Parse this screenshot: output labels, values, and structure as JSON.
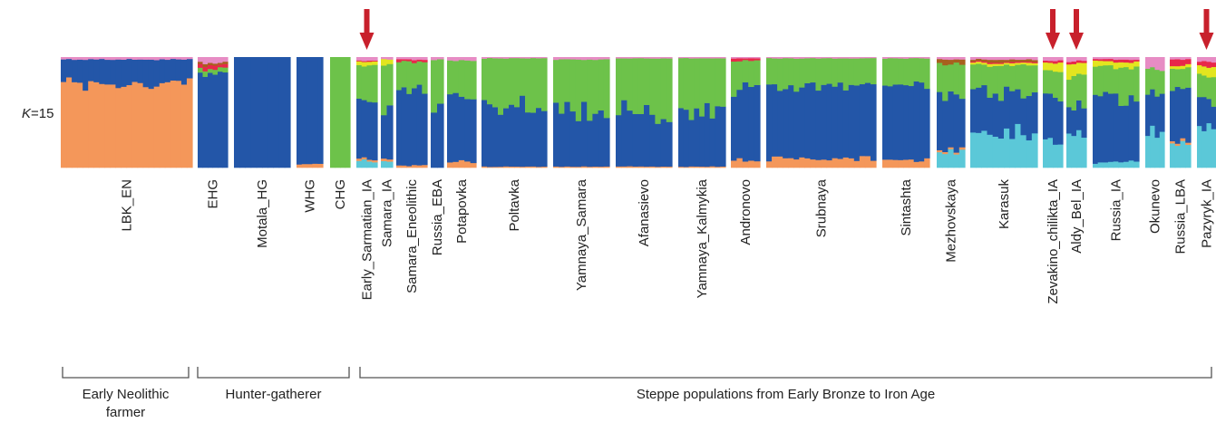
{
  "chart_data": {
    "type": "bar",
    "stacked": true,
    "normalized": true,
    "k_label_prefix": "K",
    "k_label_suffix": "=15",
    "legend": "none",
    "grid": false,
    "colors": {
      "orange": "#f4975a",
      "blue": "#2356a8",
      "green": "#6dc24a",
      "cyan": "#5bc8d8",
      "yellow": "#e3e51f",
      "pink": "#e78cc4",
      "red": "#e8284a",
      "brown": "#a8601e",
      "teal": "#2d8c7a",
      "arrow": "#c8202c",
      "bracket": "#555555"
    },
    "components": [
      "cyan",
      "orange",
      "blue",
      "green",
      "yellow",
      "red",
      "brown",
      "pink"
    ],
    "categories": [
      "LBK_EN",
      "EHG",
      "Motala_HG",
      "WHG",
      "CHG",
      "Early_Sarmatian_IA",
      "Samara_IA",
      "Samara_Eneolithic",
      "Russia_EBA",
      "Potapovka",
      "Poltavka",
      "Yamnaya_Samara",
      "Afanasievo",
      "Yamnaya_Kalmykia",
      "Andronovo",
      "Srubnaya",
      "Sintashta",
      "Mezhovskaya",
      "Karasuk",
      "Zevakino_chilikta_IA",
      "Aldy_Bel_IA",
      "Russia_IA",
      "Okunevo",
      "Russia_LBA",
      "Pazyryk_IA"
    ],
    "populations": [
      {
        "name": "LBK_EN",
        "fractions": {
          "cyan": 0,
          "orange": 0.76,
          "blue": 0.22,
          "green": 0,
          "yellow": 0,
          "red": 0,
          "brown": 0,
          "pink": 0.02
        }
      },
      {
        "name": "EHG",
        "fractions": {
          "cyan": 0,
          "orange": 0,
          "blue": 0.86,
          "green": 0.04,
          "yellow": 0,
          "red": 0.03,
          "brown": 0.02,
          "pink": 0.05
        }
      },
      {
        "name": "Motala_HG",
        "fractions": {
          "cyan": 0,
          "orange": 0,
          "blue": 1.0,
          "green": 0,
          "yellow": 0,
          "red": 0,
          "brown": 0,
          "pink": 0
        }
      },
      {
        "name": "WHG",
        "fractions": {
          "cyan": 0,
          "orange": 0.03,
          "blue": 0.97,
          "green": 0,
          "yellow": 0,
          "red": 0,
          "brown": 0,
          "pink": 0
        }
      },
      {
        "name": "CHG",
        "fractions": {
          "cyan": 0,
          "orange": 0,
          "blue": 0,
          "green": 1.0,
          "yellow": 0,
          "red": 0,
          "brown": 0,
          "pink": 0
        }
      },
      {
        "name": "Early_Sarmatian_IA",
        "fractions": {
          "cyan": 0.06,
          "orange": 0.02,
          "blue": 0.52,
          "green": 0.32,
          "yellow": 0.04,
          "red": 0.01,
          "brown": 0,
          "pink": 0.03
        }
      },
      {
        "name": "Samara_IA",
        "fractions": {
          "cyan": 0.05,
          "orange": 0.02,
          "blue": 0.46,
          "green": 0.4,
          "yellow": 0.05,
          "red": 0,
          "brown": 0,
          "pink": 0.02
        }
      },
      {
        "name": "Samara_Eneolithic",
        "fractions": {
          "cyan": 0,
          "orange": 0.02,
          "blue": 0.68,
          "green": 0.26,
          "yellow": 0,
          "red": 0.02,
          "brown": 0,
          "pink": 0.02
        }
      },
      {
        "name": "Russia_EBA",
        "fractions": {
          "cyan": 0,
          "orange": 0,
          "blue": 0.52,
          "green": 0.46,
          "yellow": 0,
          "red": 0,
          "brown": 0,
          "pink": 0.02
        }
      },
      {
        "name": "Potapovka",
        "fractions": {
          "cyan": 0,
          "orange": 0.05,
          "blue": 0.57,
          "green": 0.35,
          "yellow": 0,
          "red": 0,
          "brown": 0,
          "pink": 0.03
        }
      },
      {
        "name": "Poltavka",
        "fractions": {
          "cyan": 0,
          "orange": 0.01,
          "blue": 0.55,
          "green": 0.43,
          "yellow": 0,
          "red": 0,
          "brown": 0,
          "pink": 0.01
        }
      },
      {
        "name": "Yamnaya_Samara",
        "fractions": {
          "cyan": 0,
          "orange": 0.01,
          "blue": 0.51,
          "green": 0.46,
          "yellow": 0,
          "red": 0,
          "brown": 0,
          "pink": 0.02
        }
      },
      {
        "name": "Afanasievo",
        "fractions": {
          "cyan": 0,
          "orange": 0.01,
          "blue": 0.51,
          "green": 0.47,
          "yellow": 0,
          "red": 0,
          "brown": 0,
          "pink": 0.01
        }
      },
      {
        "name": "Yamnaya_Kalmykia",
        "fractions": {
          "cyan": 0,
          "orange": 0.01,
          "blue": 0.5,
          "green": 0.48,
          "yellow": 0,
          "red": 0,
          "brown": 0,
          "pink": 0.01
        }
      },
      {
        "name": "Andronovo",
        "fractions": {
          "cyan": 0,
          "orange": 0.06,
          "blue": 0.66,
          "green": 0.25,
          "yellow": 0,
          "red": 0.02,
          "brown": 0,
          "pink": 0.01
        }
      },
      {
        "name": "Srubnaya",
        "fractions": {
          "cyan": 0,
          "orange": 0.08,
          "blue": 0.65,
          "green": 0.26,
          "yellow": 0,
          "red": 0,
          "brown": 0,
          "pink": 0.01
        }
      },
      {
        "name": "Sintashta",
        "fractions": {
          "cyan": 0,
          "orange": 0.07,
          "blue": 0.67,
          "green": 0.25,
          "yellow": 0,
          "red": 0,
          "brown": 0,
          "pink": 0.01
        }
      },
      {
        "name": "Mezhovskaya",
        "fractions": {
          "cyan": 0.14,
          "orange": 0.02,
          "blue": 0.48,
          "green": 0.3,
          "yellow": 0,
          "red": 0,
          "brown": 0.04,
          "pink": 0.02
        }
      },
      {
        "name": "Karasuk",
        "fractions": {
          "cyan": 0.3,
          "orange": 0,
          "blue": 0.38,
          "green": 0.25,
          "yellow": 0.02,
          "red": 0.01,
          "brown": 0.02,
          "pink": 0.02
        }
      },
      {
        "name": "Zevakino_chilikta_IA",
        "fractions": {
          "cyan": 0.22,
          "orange": 0,
          "blue": 0.42,
          "green": 0.24,
          "yellow": 0.07,
          "red": 0.02,
          "brown": 0,
          "pink": 0.03
        }
      },
      {
        "name": "Aldy_Bel_IA",
        "fractions": {
          "cyan": 0.34,
          "orange": 0,
          "blue": 0.25,
          "green": 0.26,
          "yellow": 0.1,
          "red": 0.02,
          "brown": 0,
          "pink": 0.03
        }
      },
      {
        "name": "Russia_IA",
        "fractions": {
          "cyan": 0.05,
          "orange": 0,
          "blue": 0.58,
          "green": 0.28,
          "yellow": 0.05,
          "red": 0.02,
          "brown": 0,
          "pink": 0.02
        }
      },
      {
        "name": "Okunevo",
        "fractions": {
          "cyan": 0.32,
          "orange": 0,
          "blue": 0.38,
          "green": 0.2,
          "yellow": 0,
          "red": 0,
          "brown": 0,
          "pink": 0.1
        }
      },
      {
        "name": "Russia_LBA",
        "fractions": {
          "cyan": 0.22,
          "orange": 0.02,
          "blue": 0.45,
          "green": 0.2,
          "yellow": 0.03,
          "red": 0.06,
          "brown": 0,
          "pink": 0.02
        }
      },
      {
        "name": "Pazyryk_IA",
        "fractions": {
          "cyan": 0.35,
          "orange": 0,
          "blue": 0.25,
          "green": 0.22,
          "yellow": 0.1,
          "red": 0.04,
          "brown": 0,
          "pink": 0.04
        }
      }
    ],
    "highlighted": [
      "Early_Sarmatian_IA",
      "Zevakino_chilikta_IA",
      "Aldy_Bel_IA",
      "Pazyryk_IA"
    ],
    "groups": [
      {
        "label_lines": [
          "Early Neolithic",
          "farmer"
        ],
        "populations": [
          "LBK_EN"
        ]
      },
      {
        "label_lines": [
          "Hunter-gatherer"
        ],
        "populations": [
          "EHG",
          "Motala_HG",
          "WHG",
          "CHG"
        ]
      },
      {
        "label_lines": [
          "Steppe populations from Early Bronze to Iron Age"
        ],
        "populations": [
          "Early_Sarmatian_IA",
          "Samara_IA",
          "Samara_Eneolithic",
          "Russia_EBA",
          "Potapovka",
          "Poltavka",
          "Yamnaya_Samara",
          "Afanasievo",
          "Yamnaya_Kalmykia",
          "Andronovo",
          "Srubnaya",
          "Sintashta",
          "Mezhovskaya",
          "Karasuk",
          "Zevakino_chilikta_IA",
          "Aldy_Bel_IA",
          "Russia_IA",
          "Okunevo",
          "Russia_LBA",
          "Pazyryk_IA"
        ]
      }
    ]
  }
}
